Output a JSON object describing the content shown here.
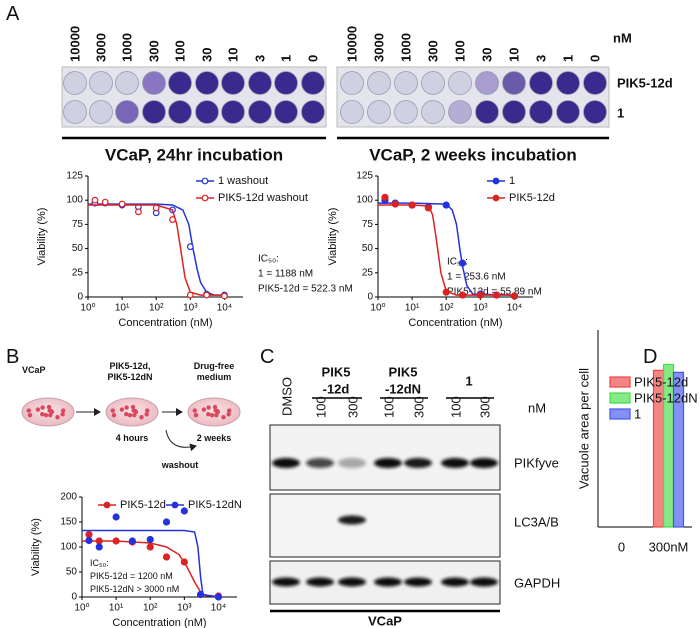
{
  "panel_labels": [
    "A",
    "B",
    "C",
    "D"
  ],
  "panel_a": {
    "doses": [
      "10000",
      "3000",
      "1000",
      "300",
      "100",
      "30",
      "10",
      "3",
      "1",
      "0"
    ],
    "dose_unit": "nM",
    "rows": [
      "PIK5-12d",
      "1"
    ],
    "captions": [
      "VCaP, 24hr incubation",
      "VCaP, 2 weeks incubation"
    ]
  },
  "panel_b": {
    "cell": "VCaP",
    "treatment": [
      "PIK5-12d,",
      "PIK5-12dN"
    ],
    "medium": [
      "Drug-free",
      "medium"
    ],
    "step1": "4 hours",
    "step2": "2 weeks",
    "washout": "washout"
  },
  "panel_c": {
    "lanes": [
      "DMSO",
      "100",
      "300",
      "100",
      "300",
      "100",
      "300"
    ],
    "groups": [
      [
        "PIK5",
        "-12d"
      ],
      [
        "PIK5",
        "-12dN"
      ],
      [
        "1"
      ]
    ],
    "unit": "nM",
    "blots": [
      "PIKfyve",
      "LC3A/B",
      "GAPDH"
    ],
    "cell_line": "VCaP"
  },
  "chart_data": [
    {
      "type": "scatter",
      "xlabel": "Concentration (nM)",
      "ylabel": "Viability (%)",
      "log_x": true,
      "xlim": [
        1,
        35000
      ],
      "xticks": [
        {
          "value": 1,
          "label": "10⁰"
        },
        {
          "value": 10,
          "label": "10¹"
        },
        {
          "value": 100,
          "label": "10²"
        },
        {
          "value": 1000,
          "label": "10³"
        },
        {
          "value": 10000,
          "label": "10⁴"
        }
      ],
      "ylim": [
        0,
        125
      ],
      "yticks": [
        0,
        25,
        50,
        75,
        100,
        125
      ],
      "legend": "upper right",
      "marker": "open",
      "annotation": [
        "IC₅₀:",
        "1 = 1188 nM",
        "PIK5-12d = 522.3 nM"
      ],
      "series": [
        {
          "name": "1 washout",
          "color": "#2233dd",
          "x": [
            1.6,
            3.2,
            10,
            30,
            100,
            300,
            1000,
            3000,
            10000
          ],
          "values": [
            97,
            97,
            95,
            93,
            87,
            90,
            52,
            3,
            2
          ],
          "fit": {
            "x": [
              1,
              10,
              100,
              300,
              600,
              900,
              1200,
              1600,
              2000,
              3000,
              5000,
              10000
            ],
            "values": [
              96,
              96,
              96,
              95,
              90,
              75,
              50,
              28,
              15,
              5,
              2,
              2
            ]
          }
        },
        {
          "name": "PIK5-12d washout",
          "color": "#dd2222",
          "x": [
            1.6,
            3.2,
            10,
            30,
            100,
            300,
            1000,
            3000,
            10000
          ],
          "values": [
            100,
            98,
            96,
            88,
            92,
            80,
            2,
            2,
            1
          ],
          "fit": {
            "x": [
              1,
              10,
              100,
              300,
              400,
              520,
              700,
              1000,
              2000,
              10000
            ],
            "values": [
              95,
              95,
              95,
              90,
              75,
              50,
              20,
              5,
              2,
              2
            ]
          }
        }
      ]
    },
    {
      "type": "scatter",
      "xlabel": "Concentration (nM)",
      "ylabel": "Viability (%)",
      "log_x": true,
      "xlim": [
        1,
        35000
      ],
      "xticks": [
        {
          "value": 1,
          "label": "10⁰"
        },
        {
          "value": 10,
          "label": "10¹"
        },
        {
          "value": 100,
          "label": "10²"
        },
        {
          "value": 1000,
          "label": "10³"
        },
        {
          "value": 10000,
          "label": "10⁴"
        }
      ],
      "ylim": [
        0,
        125
      ],
      "yticks": [
        0,
        25,
        50,
        75,
        100,
        125
      ],
      "legend": "upper right",
      "marker": "filled",
      "annotation": [
        "IC₅₀:",
        "1 = 253.6 nM",
        "PIK5-12d = 55.89 nM"
      ],
      "series": [
        {
          "name": "1",
          "color": "#2233dd",
          "x": [
            1.6,
            3.2,
            10,
            30,
            100,
            300,
            1000,
            3000,
            10000
          ],
          "values": [
            100,
            97,
            95,
            93,
            95,
            35,
            3,
            2,
            1
          ],
          "fit": {
            "x": [
              1,
              10,
              100,
              150,
              200,
              250,
              300,
              400,
              600,
              10000
            ],
            "values": [
              97,
              97,
              96,
              90,
              75,
              50,
              32,
              12,
              3,
              2
            ]
          }
        },
        {
          "name": "PIK5-12d",
          "color": "#dd2222",
          "x": [
            1.6,
            3.2,
            10,
            30,
            100,
            300,
            1000,
            3000,
            10000
          ],
          "values": [
            103,
            96,
            95,
            92,
            5,
            2,
            2,
            2,
            1
          ],
          "fit": {
            "x": [
              1,
              10,
              30,
              40,
              50,
              56,
              70,
              100,
              200,
              10000
            ],
            "values": [
              95,
              95,
              94,
              85,
              62,
              50,
              25,
              6,
              2,
              2
            ]
          }
        }
      ]
    },
    {
      "type": "scatter",
      "xlabel": "Concentration (nM)",
      "ylabel": "Viability (%)",
      "log_x": true,
      "xlim": [
        1,
        35000
      ],
      "xticks": [
        {
          "value": 1,
          "label": "10⁰"
        },
        {
          "value": 10,
          "label": "10¹"
        },
        {
          "value": 100,
          "label": "10²"
        },
        {
          "value": 1000,
          "label": "10³"
        },
        {
          "value": 10000,
          "label": "10⁴"
        }
      ],
      "ylim": [
        0,
        200
      ],
      "yticks": [
        0,
        50,
        100,
        150,
        200
      ],
      "legend": "upper left",
      "marker": "filled",
      "annotation": [
        "IC₅₀:",
        "PIK5-12d = 1200 nM",
        "PIK5-12dN > 3000 nM"
      ],
      "series": [
        {
          "name": "PIK5-12d",
          "color": "#dd2222",
          "x": [
            1.6,
            3.2,
            10,
            30,
            100,
            300,
            1000,
            3000,
            10000
          ],
          "values": [
            125,
            112,
            112,
            110,
            100,
            80,
            70,
            5,
            2
          ],
          "fit": {
            "x": [
              1,
              10,
              100,
              300,
              700,
              1200,
              2000,
              3000,
              4000,
              10000
            ],
            "values": [
              112,
              112,
              108,
              100,
              85,
              60,
              30,
              10,
              3,
              1
            ]
          }
        },
        {
          "name": "PIK5-12dN",
          "color": "#2233dd",
          "x": [
            1.6,
            3.2,
            10,
            30,
            100,
            300,
            1000,
            3000,
            10000
          ],
          "values": [
            113,
            100,
            160,
            112,
            115,
            150,
            172,
            5,
            0
          ],
          "fit": {
            "x": [
              1,
              1000,
              2000,
              2500,
              3000,
              3500,
              10000
            ],
            "values": [
              133,
              133,
              130,
              100,
              40,
              5,
              0
            ]
          }
        }
      ]
    },
    {
      "type": "bar",
      "ylabel": "Vacuole area per cell",
      "categories": [
        "0",
        "300nM"
      ],
      "ylim": [
        0,
        200
      ],
      "legend": "upper right",
      "series": [
        {
          "name": "PIK5-12d",
          "color": "#ee4444",
          "values": [
            0,
            159
          ]
        },
        {
          "name": "PIK5-12dN",
          "color": "#44dd44",
          "values": [
            0,
            165
          ]
        },
        {
          "name": "1",
          "color": "#4455ee",
          "values": [
            0,
            157
          ]
        }
      ]
    }
  ]
}
